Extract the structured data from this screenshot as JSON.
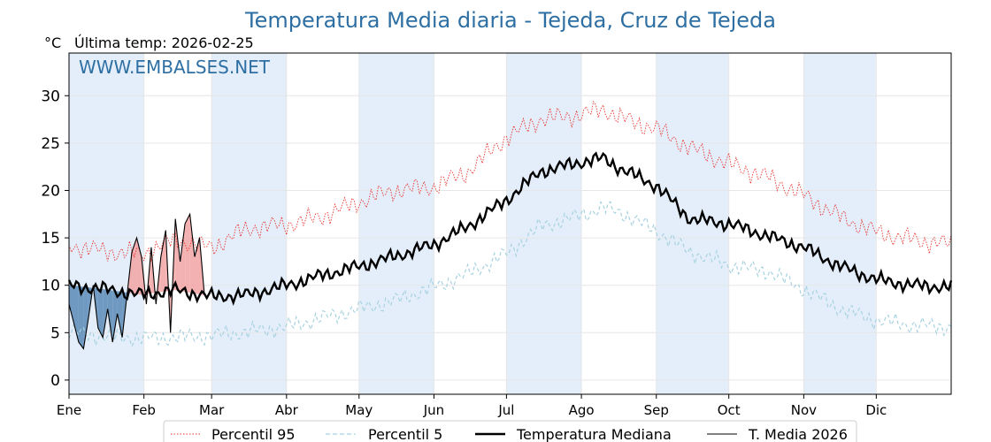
{
  "header": {
    "title": "Temperatura Media diaria - Tejeda, Cruz de Tejeda",
    "unit": "°C",
    "last_temp": "Última temp: 2026-02-25",
    "watermark": "WWW.EMBALSES.NET"
  },
  "legend": {
    "p95": "Percentil 95",
    "p5": "Percentil 5",
    "median": "Temperatura Mediana",
    "current": "T. Media 2026"
  },
  "colors": {
    "title": "#2e6fa3",
    "p95": "#e8332f",
    "p5": "#a8d2e0",
    "median": "#000000",
    "current": "#000000",
    "above_fill": "#f2a3a3",
    "below_fill": "#5b8ab5",
    "band": "#e3eefa"
  },
  "chart_data": {
    "type": "line",
    "title": "Temperatura Media diaria - Tejeda, Cruz de Tejeda",
    "ylabel": "°C",
    "ylim": [
      -1.5,
      34.5
    ],
    "yticks": [
      0,
      5,
      10,
      15,
      20,
      25,
      30
    ],
    "xlim": [
      1,
      366
    ],
    "months": [
      {
        "label": "Ene",
        "day": 1
      },
      {
        "label": "Feb",
        "day": 32
      },
      {
        "label": "Mar",
        "day": 60
      },
      {
        "label": "Abr",
        "day": 91
      },
      {
        "label": "May",
        "day": 121
      },
      {
        "label": "Jun",
        "day": 152
      },
      {
        "label": "Jul",
        "day": 182
      },
      {
        "label": "Ago",
        "day": 213
      },
      {
        "label": "Sep",
        "day": 244
      },
      {
        "label": "Oct",
        "day": 274
      },
      {
        "label": "Nov",
        "day": 305
      },
      {
        "label": "Dic",
        "day": 335
      }
    ],
    "grid": true,
    "legend_position": "bottom",
    "series": [
      {
        "name": "Percentil 95",
        "style": "dotted",
        "x": [
          1,
          15,
          31,
          45,
          60,
          75,
          91,
          105,
          121,
          135,
          152,
          166,
          182,
          196,
          213,
          222,
          230,
          244,
          258,
          274,
          290,
          305,
          320,
          335,
          350,
          366
        ],
        "y": [
          14.2,
          13.6,
          13.3,
          14.8,
          14.0,
          16.0,
          16.4,
          17.2,
          18.8,
          20.0,
          20.4,
          22.0,
          25.6,
          27.5,
          28.0,
          28.6,
          27.6,
          26.5,
          24.5,
          22.8,
          21.4,
          19.5,
          17.2,
          15.6,
          14.8,
          14.3
        ]
      },
      {
        "name": "Percentil 5",
        "style": "dashed",
        "x": [
          1,
          15,
          31,
          45,
          60,
          75,
          91,
          105,
          121,
          135,
          152,
          166,
          182,
          196,
          213,
          222,
          230,
          244,
          258,
          274,
          290,
          305,
          320,
          335,
          350,
          366
        ],
        "y": [
          5.1,
          4.6,
          4.4,
          4.5,
          4.7,
          5.1,
          5.6,
          6.5,
          7.5,
          8.3,
          9.8,
          11.2,
          13.3,
          16.2,
          17.4,
          18.2,
          17.6,
          15.7,
          13.5,
          12.1,
          11.5,
          9.6,
          7.5,
          6.3,
          5.8,
          5.6
        ]
      },
      {
        "name": "Temperatura Mediana",
        "style": "solid",
        "x": [
          1,
          15,
          31,
          45,
          60,
          75,
          91,
          105,
          121,
          135,
          152,
          166,
          182,
          196,
          213,
          222,
          230,
          244,
          258,
          274,
          290,
          305,
          320,
          335,
          350,
          366
        ],
        "y": [
          10.0,
          9.6,
          9.0,
          9.5,
          8.8,
          9.0,
          10.0,
          11.0,
          12.0,
          13.0,
          14.3,
          16.2,
          19.0,
          22.0,
          23.0,
          23.4,
          22.2,
          20.5,
          17.0,
          16.5,
          15.2,
          14.0,
          12.0,
          10.6,
          10.0,
          9.8
        ]
      },
      {
        "name": "T. Media 2026",
        "style": "solid-thin",
        "x": [
          1,
          3,
          5,
          7,
          9,
          11,
          13,
          15,
          17,
          19,
          21,
          23,
          25,
          27,
          29,
          31,
          33,
          35,
          37,
          39,
          41,
          43,
          45,
          47,
          49,
          51,
          53,
          55,
          57
        ],
        "y": [
          8.0,
          6.0,
          4.0,
          3.3,
          6.5,
          10.0,
          5.5,
          4.5,
          7.5,
          4.0,
          7.0,
          4.5,
          9.0,
          13.5,
          15.0,
          13.0,
          8.0,
          14.0,
          8.0,
          13.0,
          15.8,
          5.0,
          17.0,
          12.5,
          16.5,
          17.5,
          13.0,
          15.0,
          9.0
        ]
      }
    ]
  }
}
